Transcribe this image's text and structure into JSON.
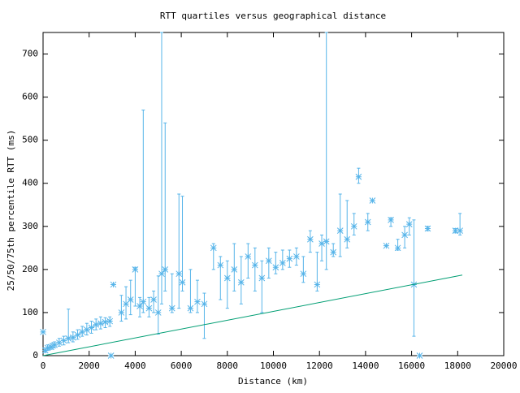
{
  "chart_data": {
    "type": "errorbar",
    "title": "RTT quartiles versus geographical distance",
    "x_label": "Distance (km)",
    "y_label": "25/50/75th percentile RTT (ms)",
    "xlim": [
      0,
      20000
    ],
    "ylim": [
      0,
      750
    ],
    "xticks": [
      0,
      2000,
      4000,
      6000,
      8000,
      10000,
      12000,
      14000,
      16000,
      18000,
      20000
    ],
    "yticks": [
      0,
      100,
      200,
      300,
      400,
      500,
      600,
      700
    ],
    "series": [
      {
        "type": "errorbar",
        "color": "#56b4e9",
        "x": [
          0,
          100,
          200,
          350,
          500,
          700,
          900,
          1100,
          1300,
          1500,
          1700,
          1900,
          2100,
          2300,
          2500,
          2700,
          2900,
          2950,
          3050,
          3400,
          3600,
          3800,
          4000,
          4200,
          4350,
          4600,
          4800,
          5000,
          5150,
          5300,
          5600,
          5900,
          6050,
          6400,
          6700,
          7000,
          7400,
          7700,
          8000,
          8300,
          8600,
          8900,
          9200,
          9500,
          9800,
          10100,
          10400,
          10700,
          11000,
          11300,
          11600,
          11900,
          12100,
          12300,
          12600,
          12900,
          13200,
          13500,
          13700,
          14100,
          14300,
          14900,
          15100,
          15400,
          15700,
          15900,
          16100,
          16350,
          16700,
          17900,
          18100
        ],
        "values": [
          55,
          12,
          18,
          20,
          25,
          30,
          35,
          40,
          42,
          48,
          55,
          60,
          65,
          72,
          75,
          78,
          80,
          0,
          165,
          100,
          120,
          130,
          200,
          115,
          125,
          110,
          130,
          100,
          190,
          200,
          110,
          190,
          170,
          110,
          125,
          120,
          250,
          210,
          180,
          200,
          170,
          230,
          210,
          180,
          220,
          205,
          215,
          225,
          230,
          190,
          270,
          165,
          260,
          265,
          240,
          290,
          270,
          300,
          415,
          310,
          360,
          255,
          315,
          250,
          280,
          305,
          165,
          0,
          295,
          290,
          290
        ],
        "low": [
          55,
          8,
          12,
          15,
          18,
          22,
          25,
          30,
          32,
          38,
          45,
          48,
          52,
          60,
          62,
          65,
          68,
          0,
          165,
          80,
          85,
          95,
          115,
          90,
          100,
          90,
          100,
          50,
          120,
          150,
          100,
          110,
          150,
          100,
          100,
          40,
          200,
          130,
          110,
          150,
          120,
          180,
          150,
          100,
          180,
          190,
          200,
          205,
          210,
          170,
          240,
          150,
          220,
          200,
          230,
          230,
          250,
          280,
          400,
          290,
          360,
          255,
          300,
          245,
          250,
          280,
          45,
          0,
          290,
          285,
          280
        ],
        "high": [
          55,
          18,
          25,
          28,
          32,
          40,
          45,
          108,
          55,
          60,
          68,
          75,
          80,
          85,
          90,
          88,
          90,
          0,
          165,
          140,
          160,
          175,
          205,
          135,
          570,
          135,
          150,
          185,
          750,
          540,
          190,
          375,
          370,
          200,
          175,
          145,
          260,
          230,
          220,
          260,
          230,
          260,
          250,
          220,
          250,
          240,
          245,
          245,
          250,
          230,
          290,
          240,
          280,
          750,
          260,
          375,
          360,
          330,
          435,
          330,
          360,
          255,
          320,
          270,
          300,
          320,
          315,
          0,
          300,
          295,
          330
        ]
      },
      {
        "type": "line",
        "color": "#009e73",
        "x": [
          0,
          18200
        ],
        "values": [
          0,
          187
        ]
      }
    ]
  }
}
